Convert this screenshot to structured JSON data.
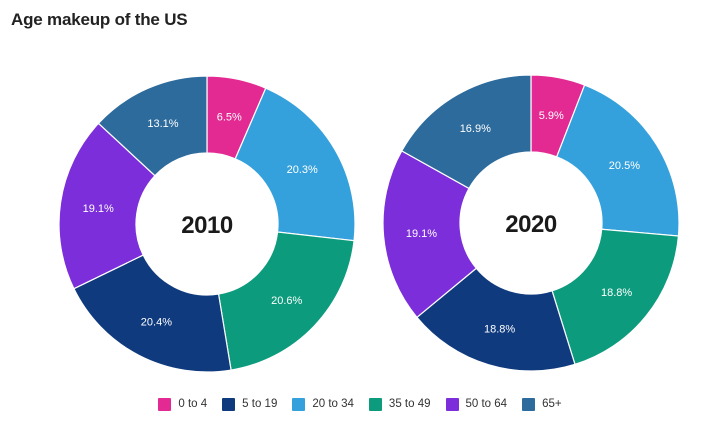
{
  "title": "Age makeup of the US",
  "chart_data": {
    "type": "pie",
    "subtype": "donut-small-multiples",
    "title": "Age makeup of the US",
    "categories": [
      "0 to 4",
      "5 to 19",
      "20 to 34",
      "35 to 49",
      "50 to 64",
      "65+"
    ],
    "colors": {
      "0 to 4": "#e32a92",
      "5 to 19": "#0f3a7d",
      "20 to 34": "#35a1dc",
      "35 to 49": "#0c9b7c",
      "50 to 64": "#7b2ed9",
      "65+": "#2d6b9c"
    },
    "series": [
      {
        "name": "2010",
        "values": [
          6.5,
          20.4,
          20.3,
          20.6,
          19.1,
          13.1
        ]
      },
      {
        "name": "2020",
        "values": [
          5.9,
          18.8,
          20.5,
          18.8,
          19.1,
          16.9
        ]
      }
    ],
    "value_suffix": "%",
    "slice_order_clockwise": [
      "0 to 4",
      "20 to 34",
      "35 to 49",
      "5 to 19",
      "50 to 64",
      "65+"
    ],
    "start_angle_deg": 0,
    "center_labels": [
      "2010",
      "2020"
    ],
    "labels": "percent-inside-ring",
    "legend_position": "bottom"
  },
  "legend": {
    "items": [
      {
        "label": "0 to 4",
        "color": "#e32a92"
      },
      {
        "label": "5 to 19",
        "color": "#0f3a7d"
      },
      {
        "label": "20 to 34",
        "color": "#35a1dc"
      },
      {
        "label": "35 to 49",
        "color": "#0c9b7c"
      },
      {
        "label": "50 to 64",
        "color": "#7b2ed9"
      },
      {
        "label": "65+",
        "color": "#2d6b9c"
      }
    ]
  }
}
